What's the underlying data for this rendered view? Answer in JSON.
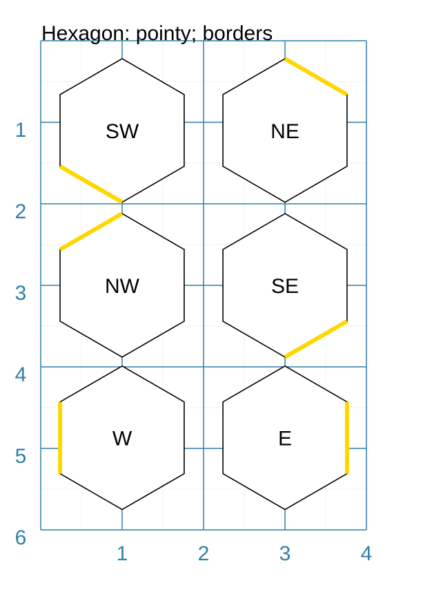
{
  "title": "Hexagon: pointy; borders",
  "colors": {
    "grid": "#2e7fa8",
    "grid_faint": "#eef3f6",
    "hex_stroke": "#000000",
    "border_highlight": "#ffd700",
    "axis_text": "#2e7fa8"
  },
  "chart_data": {
    "type": "diagram",
    "x_ticks": [
      "1",
      "2",
      "3",
      "4"
    ],
    "y_ticks": [
      "1",
      "2",
      "3",
      "4",
      "5",
      "6"
    ],
    "xlim": [
      0,
      4
    ],
    "ylim": [
      0,
      6
    ],
    "hexagons": [
      {
        "label": "SW",
        "x": 1,
        "y": 1.1,
        "highlighted_border": "SW"
      },
      {
        "label": "NE",
        "x": 3,
        "y": 1.1,
        "highlighted_border": "NE"
      },
      {
        "label": "NW",
        "x": 1,
        "y": 3,
        "highlighted_border": "NW"
      },
      {
        "label": "SE",
        "x": 3,
        "y": 3,
        "highlighted_border": "SE"
      },
      {
        "label": "W",
        "x": 1,
        "y": 4.87,
        "highlighted_border": "W"
      },
      {
        "label": "E",
        "x": 3,
        "y": 4.87,
        "highlighted_border": "E"
      }
    ]
  }
}
